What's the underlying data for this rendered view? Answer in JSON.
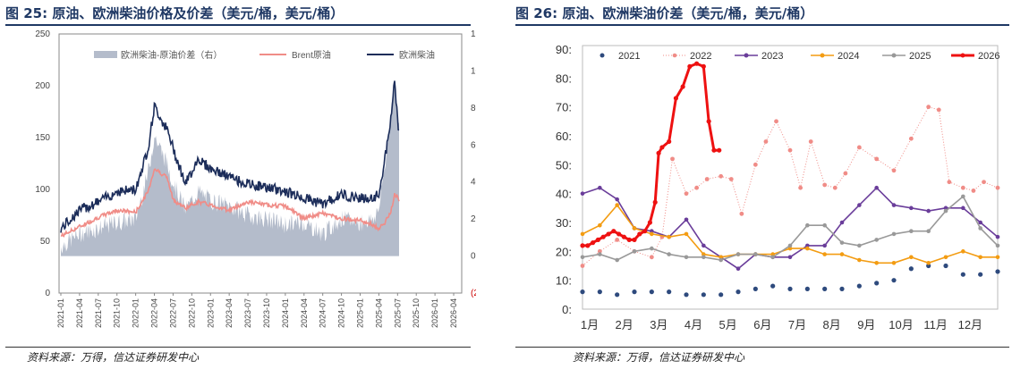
{
  "left": {
    "title": "图 25:  原油、欧洲柴油价格及价差（美元/桶，美元/桶）",
    "source": "资料来源：万得，信达证券研发中心",
    "chart_data": {
      "type": "line",
      "legend": [
        "欧洲柴油-原油价差（右）",
        "Brent原油",
        "欧洲柴油"
      ],
      "colors": [
        "#b4bccb",
        "#f08c87",
        "#1c2d5a"
      ],
      "yleft": {
        "min": 0,
        "max": 250,
        "ticks": [
          "0",
          "50",
          "100",
          "150",
          "200",
          "250"
        ]
      },
      "yright": {
        "min": -20,
        "max": 120,
        "ticks": [
          "(20)",
          "0",
          "20",
          "40",
          "60",
          "80",
          "100",
          "120"
        ],
        "negative_color": "#cc0000"
      },
      "xticks": [
        "2021-01",
        "2021-04",
        "2021-07",
        "2021-10",
        "2022-01",
        "2022-04",
        "2022-07",
        "2022-10",
        "2023-01",
        "2023-04",
        "2023-07",
        "2023-10",
        "2024-01",
        "2024-04",
        "2024-07",
        "2024-10",
        "2025-01",
        "2025-04",
        "2025-07",
        "2025-10",
        "2026-01",
        "2026-04"
      ],
      "anchors_month_index": [
        0,
        3,
        6,
        9,
        12,
        14,
        15,
        17,
        18,
        20,
        22,
        24,
        27,
        30,
        33,
        36,
        39,
        42,
        45,
        48,
        50,
        51,
        52,
        53,
        53.5,
        54.3
      ],
      "brent": [
        55,
        64,
        73,
        80,
        78,
        98,
        120,
        112,
        90,
        82,
        88,
        85,
        80,
        88,
        85,
        84,
        72,
        77,
        72,
        70,
        66,
        62,
        68,
        80,
        96,
        90
      ],
      "diesel": [
        62,
        80,
        88,
        98,
        100,
        140,
        180,
        158,
        140,
        105,
        130,
        120,
        112,
        105,
        102,
        98,
        92,
        86,
        95,
        92,
        90,
        96,
        130,
        170,
        205,
        150
      ],
      "spread": [
        5,
        12,
        15,
        18,
        20,
        45,
        65,
        50,
        40,
        25,
        35,
        30,
        27,
        22,
        20,
        17,
        18,
        12,
        20,
        18,
        20,
        25,
        50,
        80,
        95,
        65
      ]
    }
  },
  "right": {
    "title": "图 26:  原油、欧洲柴油价差（美元/桶，美元/桶）",
    "source": "资料来源：万得，信达证券研发中心",
    "chart_data": {
      "type": "line",
      "ylim": [
        0,
        90
      ],
      "yticks": [
        "0",
        "10",
        "20",
        "30",
        "40",
        "50",
        "60",
        "70",
        "80",
        "90"
      ],
      "xticks": [
        "1月",
        "2月",
        "3月",
        "4月",
        "5月",
        "6月",
        "7月",
        "8月",
        "9月",
        "10月",
        "11月",
        "12月"
      ],
      "series": [
        {
          "name": "2021",
          "color": "#2e4a7d",
          "style": "dots",
          "x": [
            0.0,
            0.5,
            1.0,
            1.5,
            2.0,
            2.5,
            3.0,
            3.5,
            4.0,
            4.5,
            5.0,
            5.5,
            6.0,
            6.5,
            7.0,
            7.5,
            8.0,
            8.5,
            9.0,
            9.5,
            10.0,
            10.5,
            11.0,
            11.5,
            12.0
          ],
          "y": [
            6,
            6,
            5,
            6,
            6,
            6,
            5,
            5,
            5,
            6,
            7,
            8,
            7,
            7,
            7,
            7,
            8,
            9,
            10,
            14,
            15,
            15,
            12,
            12,
            13
          ]
        },
        {
          "name": "2022",
          "color": "#f08c87",
          "style": "dotted",
          "x": [
            0.0,
            0.5,
            1.0,
            1.5,
            2.0,
            2.3,
            2.6,
            3.0,
            3.3,
            3.6,
            4.0,
            4.3,
            4.6,
            5.0,
            5.3,
            5.6,
            6.0,
            6.3,
            6.6,
            7.0,
            7.3,
            7.6,
            8.0,
            8.5,
            9.0,
            9.5,
            10.0,
            10.3,
            10.6,
            11.0,
            11.3,
            11.6,
            12.0
          ],
          "y": [
            15,
            20,
            24,
            20,
            18,
            25,
            52,
            40,
            42,
            45,
            46,
            45,
            33,
            50,
            58,
            65,
            55,
            42,
            58,
            43,
            42,
            47,
            56,
            52,
            48,
            59,
            70,
            69,
            44,
            42,
            41,
            44,
            42
          ]
        },
        {
          "name": "2023",
          "color": "#6a3d9a",
          "style": "line",
          "x": [
            0.0,
            0.5,
            1.0,
            1.5,
            2.0,
            2.5,
            3.0,
            3.5,
            4.0,
            4.5,
            5.0,
            5.5,
            6.0,
            6.5,
            7.0,
            7.5,
            8.0,
            8.5,
            9.0,
            9.5,
            10.0,
            10.5,
            11.0,
            11.5,
            12.0
          ],
          "y": [
            40,
            42,
            38,
            28,
            27,
            25,
            31,
            22,
            18,
            14,
            19,
            18,
            18,
            22,
            22,
            30,
            36,
            42,
            36,
            35,
            34,
            35,
            35,
            30,
            25
          ]
        },
        {
          "name": "2024",
          "color": "#f39c12",
          "style": "line",
          "x": [
            0.0,
            0.5,
            1.0,
            1.5,
            2.0,
            2.5,
            3.0,
            3.5,
            4.0,
            4.5,
            5.0,
            5.5,
            6.0,
            6.5,
            7.0,
            7.5,
            8.0,
            8.5,
            9.0,
            9.5,
            10.0,
            10.5,
            11.0,
            11.5,
            12.0
          ],
          "y": [
            26,
            29,
            36,
            28,
            26,
            25,
            26,
            19,
            18,
            19,
            19,
            19,
            21,
            21,
            19,
            19,
            17,
            16,
            16,
            18,
            16,
            18,
            20,
            18,
            18
          ]
        },
        {
          "name": "2025",
          "color": "#999999",
          "style": "line",
          "x": [
            0.0,
            0.5,
            1.0,
            1.5,
            2.0,
            2.5,
            3.0,
            3.5,
            4.0,
            4.5,
            5.0,
            5.5,
            6.0,
            6.5,
            7.0,
            7.5,
            8.0,
            8.5,
            9.0,
            9.5,
            10.0,
            10.5,
            11.0,
            11.5,
            12.0
          ],
          "y": [
            18,
            19,
            17,
            20,
            21,
            19,
            18,
            18,
            17,
            19,
            19,
            18,
            22,
            29,
            29,
            23,
            22,
            24,
            26,
            27,
            27,
            34,
            39,
            28,
            22
          ]
        },
        {
          "name": "2026",
          "color": "#ee1111",
          "style": "bold",
          "x": [
            0.0,
            0.15,
            0.3,
            0.45,
            0.6,
            0.75,
            0.9,
            1.05,
            1.2,
            1.35,
            1.5,
            1.65,
            1.8,
            1.95,
            2.1,
            2.2,
            2.3,
            2.5,
            2.7,
            2.9,
            3.1,
            3.3,
            3.5,
            3.65,
            3.8,
            3.95
          ],
          "y": [
            22,
            22,
            23,
            24,
            25,
            26,
            27,
            26,
            25,
            24,
            24,
            26,
            27,
            30,
            37,
            54,
            56,
            58,
            73,
            77,
            84,
            85,
            84,
            65,
            55,
            55
          ]
        }
      ]
    }
  }
}
